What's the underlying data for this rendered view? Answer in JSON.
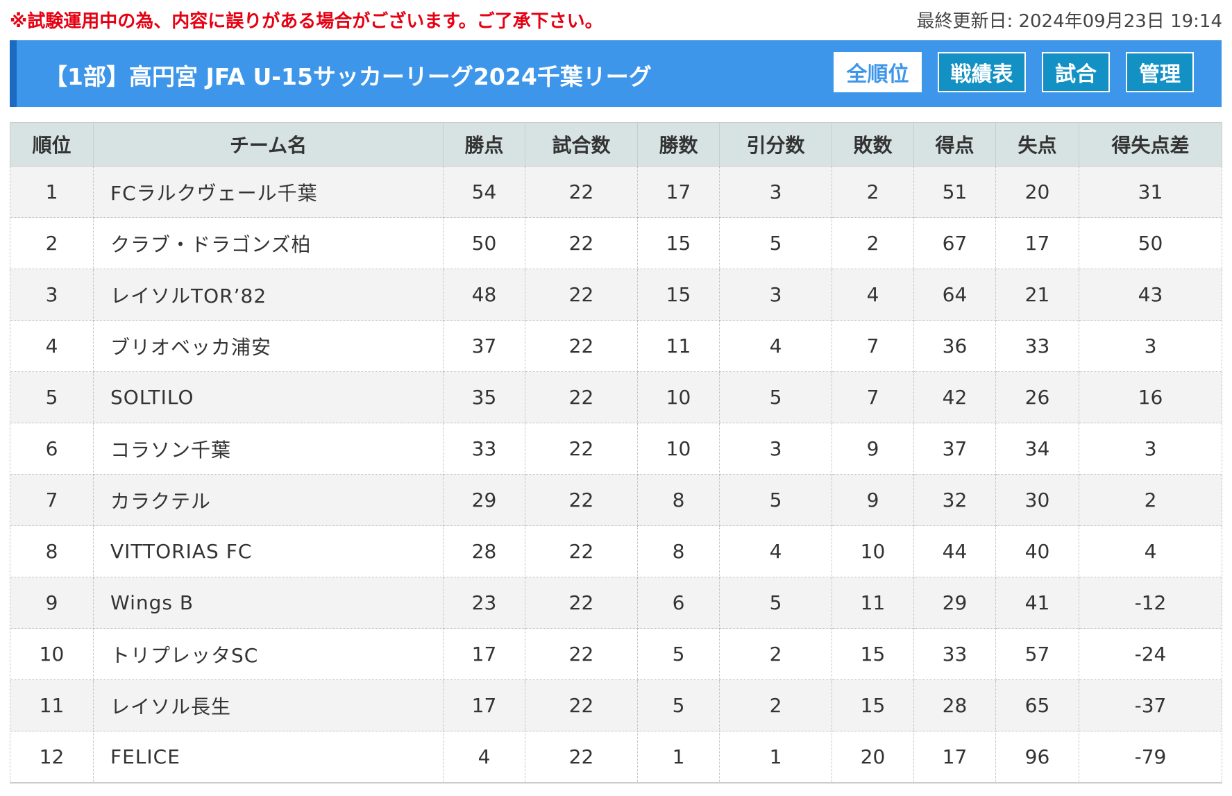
{
  "notice": "※試験運用中の為、内容に誤りがある場合がございます。ご了承下さい。",
  "last_updated": "最終更新日: 2024年09月23日 19:14",
  "header": {
    "title": "【1部】高円宮 JFA U-15サッカーリーグ2024千葉リーグ",
    "nav": [
      {
        "label": "全順位",
        "active": true
      },
      {
        "label": "戦績表",
        "active": false
      },
      {
        "label": "試合",
        "active": false
      },
      {
        "label": "管理",
        "active": false
      }
    ]
  },
  "table": {
    "columns": [
      "順位",
      "チーム名",
      "勝点",
      "試合数",
      "勝数",
      "引分数",
      "敗数",
      "得点",
      "失点",
      "得失点差"
    ],
    "rows": [
      [
        "1",
        "FCラルクヴェール千葉",
        "54",
        "22",
        "17",
        "3",
        "2",
        "51",
        "20",
        "31"
      ],
      [
        "2",
        "クラブ・ドラゴンズ柏",
        "50",
        "22",
        "15",
        "5",
        "2",
        "67",
        "17",
        "50"
      ],
      [
        "3",
        "レイソルTOR’82",
        "48",
        "22",
        "15",
        "3",
        "4",
        "64",
        "21",
        "43"
      ],
      [
        "4",
        "ブリオベッカ浦安",
        "37",
        "22",
        "11",
        "4",
        "7",
        "36",
        "33",
        "3"
      ],
      [
        "5",
        "SOLTILO",
        "35",
        "22",
        "10",
        "5",
        "7",
        "42",
        "26",
        "16"
      ],
      [
        "6",
        "コラソン千葉",
        "33",
        "22",
        "10",
        "3",
        "9",
        "37",
        "34",
        "3"
      ],
      [
        "7",
        "カラクテル",
        "29",
        "22",
        "8",
        "5",
        "9",
        "32",
        "30",
        "2"
      ],
      [
        "8",
        "VITTORIAS FC",
        "28",
        "22",
        "8",
        "4",
        "10",
        "44",
        "40",
        "4"
      ],
      [
        "9",
        "Wings B",
        "23",
        "22",
        "6",
        "5",
        "11",
        "29",
        "41",
        "-12"
      ],
      [
        "10",
        "トリプレッタSC",
        "17",
        "22",
        "5",
        "2",
        "15",
        "33",
        "57",
        "-24"
      ],
      [
        "11",
        "レイソル長生",
        "17",
        "22",
        "5",
        "2",
        "15",
        "28",
        "65",
        "-37"
      ],
      [
        "12",
        "FELICE",
        "4",
        "22",
        "1",
        "1",
        "20",
        "17",
        "96",
        "-79"
      ]
    ]
  }
}
